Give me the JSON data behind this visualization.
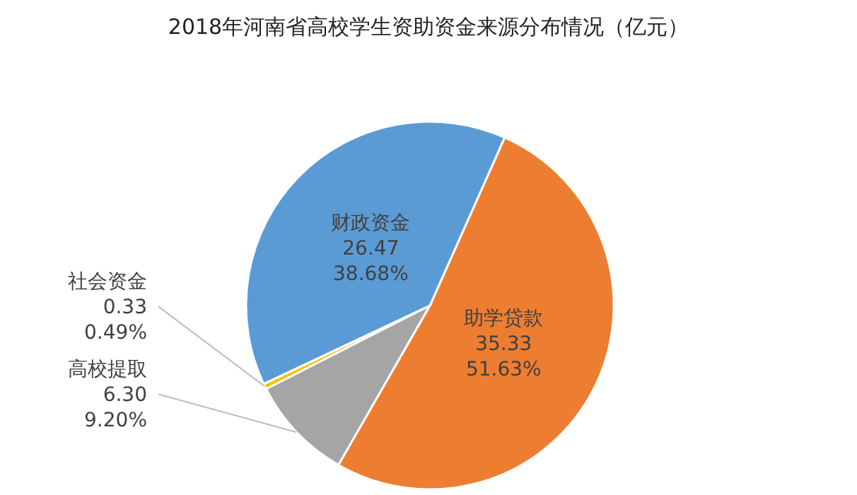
{
  "chart_data": {
    "type": "pie",
    "title": "2018年河南省高校学生资助资金来源分布情况（亿元）",
    "categories": [
      "助学贷款",
      "高校提取",
      "社会资金",
      "财政资金"
    ],
    "values": [
      35.33,
      6.3,
      0.33,
      26.47
    ],
    "value_labels": [
      "35.33\n51.63%",
      "6.30\n9.20%",
      "0.33\n0.49%",
      "26.47\n38.68%"
    ],
    "colors": [
      "#ed7d31",
      "#a5a5a5",
      "#ffc000",
      "#5b9bd5"
    ]
  }
}
